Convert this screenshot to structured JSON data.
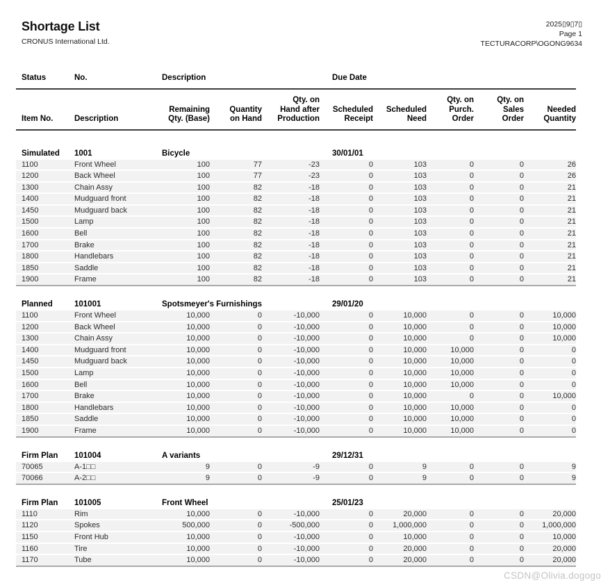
{
  "report": {
    "title": "Shortage List",
    "company": "CRONUS International Ltd.",
    "date": "2025▯9▯7▯",
    "page": "Page 1",
    "user": "TECTURACORP\\OGONG9634"
  },
  "watermark": "CSDN@Olivia.dogogo",
  "table": {
    "header1": {
      "status": "Status",
      "no": "No.",
      "description": "Description",
      "due_date": "Due Date"
    },
    "header2": [
      "Item No.",
      "Description",
      "Remaining\nQty. (Base)",
      "Quantity\non Hand",
      "Qty. on\nHand after\nProduction",
      "Scheduled\nReceipt",
      "Scheduled\nNeed",
      "Qty. on\nPurch.\nOrder",
      "Qty. on\nSales\nOrder",
      "Needed\nQuantity"
    ],
    "groups": [
      {
        "status": "Simulated",
        "no": "1001",
        "description": "Bicycle",
        "due_date": "30/01/01",
        "rows": [
          [
            "1100",
            "Front Wheel",
            "100",
            "77",
            "-23",
            "0",
            "103",
            "0",
            "0",
            "26"
          ],
          [
            "1200",
            "Back Wheel",
            "100",
            "77",
            "-23",
            "0",
            "103",
            "0",
            "0",
            "26"
          ],
          [
            "1300",
            "Chain Assy",
            "100",
            "82",
            "-18",
            "0",
            "103",
            "0",
            "0",
            "21"
          ],
          [
            "1400",
            "Mudguard front",
            "100",
            "82",
            "-18",
            "0",
            "103",
            "0",
            "0",
            "21"
          ],
          [
            "1450",
            "Mudguard back",
            "100",
            "82",
            "-18",
            "0",
            "103",
            "0",
            "0",
            "21"
          ],
          [
            "1500",
            "Lamp",
            "100",
            "82",
            "-18",
            "0",
            "103",
            "0",
            "0",
            "21"
          ],
          [
            "1600",
            "Bell",
            "100",
            "82",
            "-18",
            "0",
            "103",
            "0",
            "0",
            "21"
          ],
          [
            "1700",
            "Brake",
            "100",
            "82",
            "-18",
            "0",
            "103",
            "0",
            "0",
            "21"
          ],
          [
            "1800",
            "Handlebars",
            "100",
            "82",
            "-18",
            "0",
            "103",
            "0",
            "0",
            "21"
          ],
          [
            "1850",
            "Saddle",
            "100",
            "82",
            "-18",
            "0",
            "103",
            "0",
            "0",
            "21"
          ],
          [
            "1900",
            "Frame",
            "100",
            "82",
            "-18",
            "0",
            "103",
            "0",
            "0",
            "21"
          ]
        ]
      },
      {
        "status": "Planned",
        "no": "101001",
        "description": "Spotsmeyer's Furnishings",
        "due_date": "29/01/20",
        "rows": [
          [
            "1100",
            "Front Wheel",
            "10,000",
            "0",
            "-10,000",
            "0",
            "10,000",
            "0",
            "0",
            "10,000"
          ],
          [
            "1200",
            "Back Wheel",
            "10,000",
            "0",
            "-10,000",
            "0",
            "10,000",
            "0",
            "0",
            "10,000"
          ],
          [
            "1300",
            "Chain Assy",
            "10,000",
            "0",
            "-10,000",
            "0",
            "10,000",
            "0",
            "0",
            "10,000"
          ],
          [
            "1400",
            "Mudguard front",
            "10,000",
            "0",
            "-10,000",
            "0",
            "10,000",
            "10,000",
            "0",
            "0"
          ],
          [
            "1450",
            "Mudguard back",
            "10,000",
            "0",
            "-10,000",
            "0",
            "10,000",
            "10,000",
            "0",
            "0"
          ],
          [
            "1500",
            "Lamp",
            "10,000",
            "0",
            "-10,000",
            "0",
            "10,000",
            "10,000",
            "0",
            "0"
          ],
          [
            "1600",
            "Bell",
            "10,000",
            "0",
            "-10,000",
            "0",
            "10,000",
            "10,000",
            "0",
            "0"
          ],
          [
            "1700",
            "Brake",
            "10,000",
            "0",
            "-10,000",
            "0",
            "10,000",
            "0",
            "0",
            "10,000"
          ],
          [
            "1800",
            "Handlebars",
            "10,000",
            "0",
            "-10,000",
            "0",
            "10,000",
            "10,000",
            "0",
            "0"
          ],
          [
            "1850",
            "Saddle",
            "10,000",
            "0",
            "-10,000",
            "0",
            "10,000",
            "10,000",
            "0",
            "0"
          ],
          [
            "1900",
            "Frame",
            "10,000",
            "0",
            "-10,000",
            "0",
            "10,000",
            "10,000",
            "0",
            "0"
          ]
        ]
      },
      {
        "status": "Firm Plan",
        "no": "101004",
        "description": "A variants",
        "due_date": "29/12/31",
        "rows": [
          [
            "70065",
            "A-1□□",
            "9",
            "0",
            "-9",
            "0",
            "9",
            "0",
            "0",
            "9"
          ],
          [
            "70066",
            "A-2□□",
            "9",
            "0",
            "-9",
            "0",
            "9",
            "0",
            "0",
            "9"
          ]
        ]
      },
      {
        "status": "Firm Plan",
        "no": "101005",
        "description": "Front Wheel",
        "due_date": "25/01/23",
        "rows": [
          [
            "1110",
            "Rim",
            "10,000",
            "0",
            "-10,000",
            "0",
            "20,000",
            "0",
            "0",
            "20,000"
          ],
          [
            "1120",
            "Spokes",
            "500,000",
            "0",
            "-500,000",
            "0",
            "1,000,000",
            "0",
            "0",
            "1,000,000"
          ],
          [
            "1150",
            "Front Hub",
            "10,000",
            "0",
            "-10,000",
            "0",
            "10,000",
            "0",
            "0",
            "10,000"
          ],
          [
            "1160",
            "Tire",
            "10,000",
            "0",
            "-10,000",
            "0",
            "20,000",
            "0",
            "0",
            "20,000"
          ],
          [
            "1170",
            "Tube",
            "10,000",
            "0",
            "-10,000",
            "0",
            "20,000",
            "0",
            "0",
            "20,000"
          ]
        ]
      }
    ]
  }
}
